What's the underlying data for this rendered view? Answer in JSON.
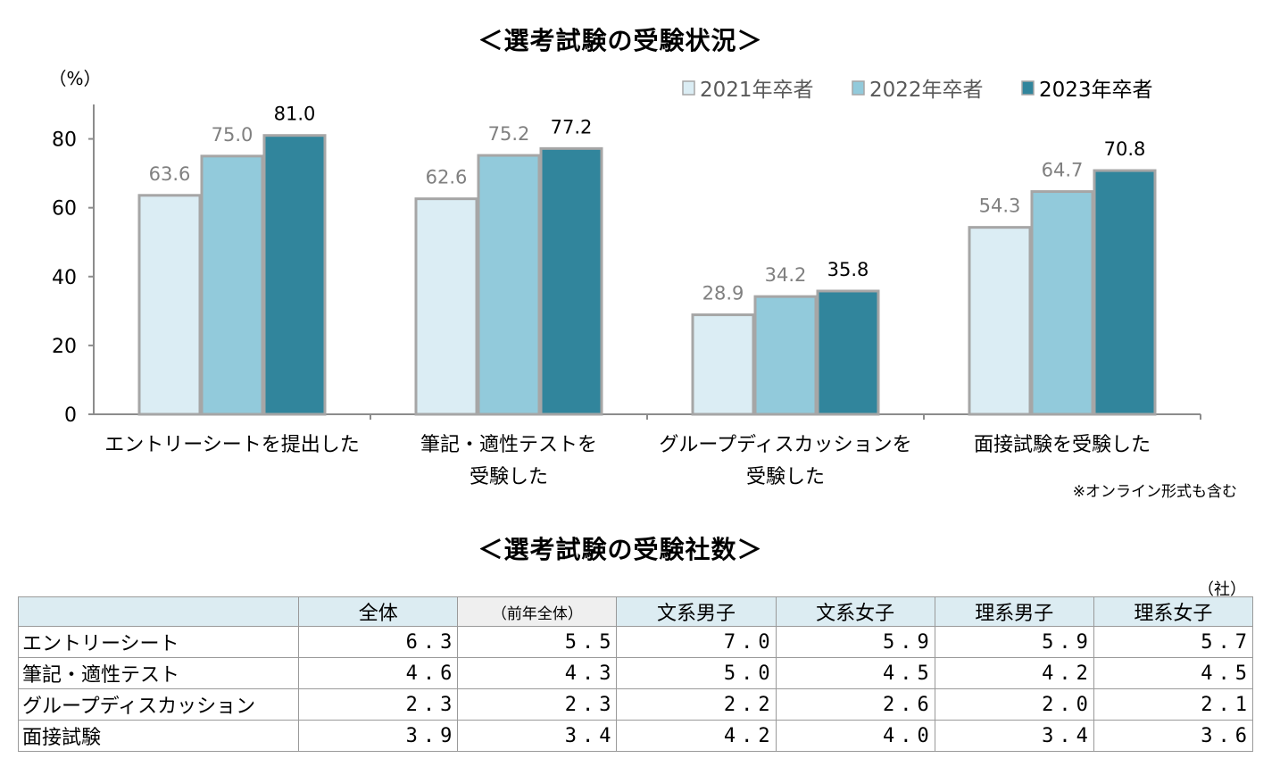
{
  "chart_title": "＜選考試験の受験状況＞",
  "chart_data": {
    "type": "bar",
    "y_unit_label": "（%）",
    "ylim": [
      0,
      90
    ],
    "yticks": [
      0,
      20,
      40,
      60,
      80
    ],
    "categories": [
      [
        "エントリーシートを提出した"
      ],
      [
        "筆記・適性テストを",
        "受験した"
      ],
      [
        "グループディスカッションを",
        "受験した"
      ],
      [
        "面接試験を受験した"
      ]
    ],
    "series": [
      {
        "name": "2021年卒者",
        "color": "#dbedf4",
        "label_color": "#808080",
        "values": [
          63.6,
          62.6,
          28.9,
          54.3
        ]
      },
      {
        "name": "2022年卒者",
        "color": "#92cadb",
        "label_color": "#808080",
        "values": [
          75.0,
          75.2,
          34.2,
          64.7
        ]
      },
      {
        "name": "2023年卒者",
        "color": "#31859c",
        "label_color": "#000000",
        "values": [
          81.0,
          77.2,
          35.8,
          70.8
        ]
      }
    ]
  },
  "note": "※オンライン形式も含む",
  "table_title": "＜選考試験の受験社数＞",
  "table_unit": "（社）",
  "table": {
    "headers": [
      "",
      "全体",
      "（前年全体）",
      "文系男子",
      "文系女子",
      "理系男子",
      "理系女子"
    ],
    "rows": [
      {
        "label": "エントリーシート",
        "values": [
          "6.3",
          "5.5",
          "7.0",
          "5.9",
          "5.9",
          "5.7"
        ]
      },
      {
        "label": "筆記・適性テスト",
        "values": [
          "4.6",
          "4.3",
          "5.0",
          "4.5",
          "4.2",
          "4.5"
        ]
      },
      {
        "label": "グループディスカッション",
        "values": [
          "2.3",
          "2.3",
          "2.2",
          "2.6",
          "2.0",
          "2.1"
        ]
      },
      {
        "label": "面接試験",
        "values": [
          "3.9",
          "3.4",
          "4.2",
          "4.0",
          "3.4",
          "3.6"
        ]
      }
    ]
  }
}
